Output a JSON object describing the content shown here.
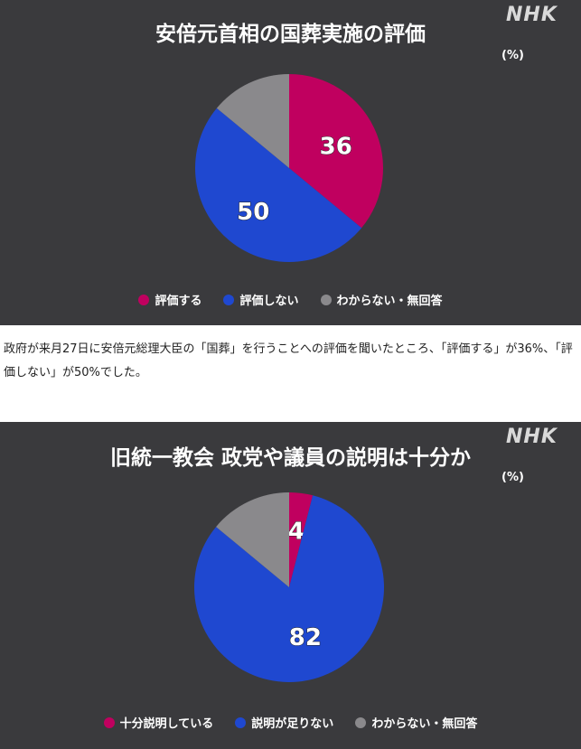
{
  "logo_text": "NHK",
  "article_text": "政府が来月27日に安倍元総理大臣の「国葬」を行うことへの評価を聞いたところ、「評価する」が36%、「評価しない」が50%でした。",
  "chart_data": [
    {
      "type": "pie",
      "title": "安倍元首相の国葬実施の評価",
      "unit": "(%)",
      "categories": [
        "評価する",
        "評価しない",
        "わからない・無回答"
      ],
      "values": [
        36,
        50,
        14
      ],
      "data_labels": [
        "36",
        "50",
        ""
      ],
      "colors": [
        "#c0005f",
        "#1f48d0",
        "#8a898c"
      ],
      "legend_position": "bottom"
    },
    {
      "type": "pie",
      "title": "旧統一教会 政党や議員の説明は十分か",
      "unit": "(%)",
      "categories": [
        "十分説明している",
        "説明が足りない",
        "わからない・無回答"
      ],
      "values": [
        4,
        82,
        14
      ],
      "data_labels": [
        "4",
        "82",
        ""
      ],
      "colors": [
        "#c0005f",
        "#1f48d0",
        "#8a898c"
      ],
      "legend_position": "bottom"
    }
  ]
}
